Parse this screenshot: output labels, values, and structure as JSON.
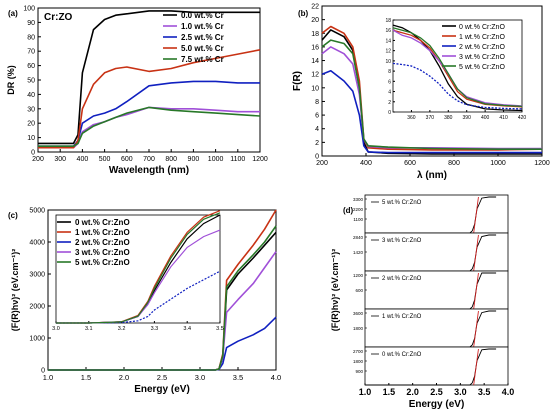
{
  "chart_data": [
    {
      "panel": "(a)",
      "type": "line",
      "inset_title": "Cr:ZO",
      "xlabel": "Wavelength (nm)",
      "ylabel": "DR (%)",
      "xlim": [
        200,
        1200
      ],
      "ylim": [
        0,
        100
      ],
      "xticks": [
        200,
        300,
        400,
        500,
        600,
        700,
        800,
        900,
        1000,
        1100,
        1200
      ],
      "yticks": [
        0,
        10,
        20,
        30,
        40,
        50,
        60,
        70,
        80,
        90,
        100
      ],
      "legend_position": "top-right",
      "series": [
        {
          "name": "0.0 wt.% Cr",
          "color": "#000000",
          "x": [
            200,
            360,
            380,
            400,
            450,
            500,
            550,
            600,
            700,
            800,
            900,
            1000,
            1100,
            1200
          ],
          "y": [
            6,
            6,
            12,
            55,
            85,
            92,
            95,
            96,
            98,
            98,
            97,
            97,
            97,
            97
          ]
        },
        {
          "name": "1.0 wt.% Cr",
          "color": "#a050d8",
          "x": [
            200,
            360,
            380,
            400,
            450,
            500,
            550,
            600,
            700,
            800,
            900,
            1000,
            1100,
            1200
          ],
          "y": [
            3,
            3,
            6,
            14,
            19,
            21,
            24,
            26,
            31,
            30,
            30,
            29,
            28,
            28
          ]
        },
        {
          "name": "2.5 wt.% Cr",
          "color": "#1020c0",
          "x": [
            200,
            360,
            380,
            400,
            450,
            500,
            550,
            600,
            700,
            800,
            900,
            1000,
            1100,
            1200
          ],
          "y": [
            4,
            4,
            8,
            20,
            25,
            27,
            30,
            35,
            46,
            48,
            49,
            49,
            48,
            48
          ]
        },
        {
          "name": "5.0 wt.% Cr",
          "color": "#c83214",
          "x": [
            200,
            360,
            380,
            400,
            450,
            500,
            550,
            600,
            700,
            800,
            900,
            1000,
            1100,
            1200
          ],
          "y": [
            3,
            3,
            8,
            30,
            47,
            55,
            58,
            59,
            56,
            58,
            62,
            65,
            68,
            71
          ]
        },
        {
          "name": "7.5 wt.% Cr",
          "color": "#287828",
          "x": [
            200,
            360,
            380,
            400,
            450,
            500,
            550,
            600,
            700,
            800,
            900,
            1000,
            1100,
            1200
          ],
          "y": [
            4,
            4,
            6,
            13,
            18,
            21,
            24,
            27,
            31,
            29,
            28,
            27,
            26,
            25
          ]
        }
      ]
    },
    {
      "panel": "(b)",
      "type": "line",
      "xlabel": "λ (nm)",
      "ylabel": "F(R)",
      "xlim": [
        200,
        1200
      ],
      "ylim": [
        0,
        22
      ],
      "xticks": [
        200,
        400,
        600,
        800,
        1000,
        1200
      ],
      "yticks": [
        0,
        2,
        4,
        6,
        8,
        10,
        12,
        14,
        16,
        18,
        20,
        22
      ],
      "legend_position": "top-right",
      "series": [
        {
          "name": "0 wt.% Cr:ZnO",
          "color": "#000000",
          "x": [
            200,
            240,
            300,
            340,
            370,
            390,
            410,
            500,
            700,
            1000,
            1200
          ],
          "y": [
            17,
            18.5,
            17.5,
            15.5,
            10,
            2,
            0.6,
            0.4,
            0.3,
            0.3,
            0.3
          ]
        },
        {
          "name": "1 wt.% Cr:ZnO",
          "color": "#c83214",
          "x": [
            200,
            240,
            300,
            340,
            370,
            390,
            410,
            500,
            700,
            1000,
            1200
          ],
          "y": [
            18,
            19,
            18,
            16,
            11,
            2.5,
            1.2,
            1.0,
            0.9,
            0.9,
            1.0
          ]
        },
        {
          "name": "2 wt.% Cr:ZnO",
          "color": "#1020c0",
          "x": [
            200,
            240,
            300,
            340,
            370,
            390,
            410,
            500,
            700,
            1000,
            1200
          ],
          "y": [
            12,
            12.5,
            11,
            9.5,
            6,
            1.5,
            0.6,
            0.5,
            0.5,
            0.5,
            0.5
          ]
        },
        {
          "name": "3 wt.% Cr:ZnO",
          "color": "#a050d8",
          "x": [
            200,
            240,
            300,
            340,
            370,
            390,
            410,
            500,
            700,
            1000,
            1200
          ],
          "y": [
            15,
            16,
            15,
            13.5,
            9,
            2.5,
            1.4,
            1.2,
            1.2,
            1.1,
            1.1
          ]
        },
        {
          "name": "5 wt.% Cr:ZnO",
          "color": "#287828",
          "x": [
            200,
            240,
            300,
            340,
            370,
            390,
            410,
            500,
            700,
            1000,
            1200
          ],
          "y": [
            16,
            17,
            16.5,
            15,
            10,
            2.5,
            1.5,
            1.3,
            1.1,
            1.0,
            1.0
          ]
        }
      ],
      "inset": {
        "xlim": [
          350,
          420
        ],
        "ylim": [
          0,
          18
        ],
        "xticks": [
          360,
          370,
          380,
          390,
          400,
          410,
          420
        ],
        "yticks": [
          0,
          2,
          4,
          6,
          8,
          10,
          12,
          14,
          16,
          18
        ],
        "series": [
          {
            "name": "0 wt.% Cr:ZnO",
            "color": "#000000",
            "x": [
              350,
              355,
              360,
              365,
              370,
              375,
              380,
              385,
              390,
              400,
              410,
              420
            ],
            "y": [
              17,
              16.5,
              15.5,
              14,
              12,
              9,
              5.5,
              3,
              1.5,
              0.6,
              0.4,
              0.3
            ]
          },
          {
            "name": "1 wt.% Cr:ZnO",
            "color": "#c83214",
            "x": [
              350,
              355,
              360,
              365,
              370,
              375,
              380,
              385,
              390,
              400,
              410,
              420
            ],
            "y": [
              16,
              15.5,
              15,
              14,
              12.5,
              10,
              7,
              4,
              2.5,
              1.5,
              1.2,
              1.0
            ]
          },
          {
            "name": "2 wt.% Cr:ZnO",
            "color": "#1020c0",
            "x": [
              350,
              355,
              360,
              365,
              370,
              375,
              380,
              385,
              390,
              400,
              410,
              420
            ],
            "y": [
              9.5,
              9.3,
              9,
              8.2,
              7,
              5.5,
              3.5,
              2.2,
              1.4,
              0.9,
              0.7,
              0.6
            ]
          },
          {
            "name": "3 wt.% Cr:ZnO",
            "color": "#a050d8",
            "x": [
              350,
              355,
              360,
              365,
              370,
              375,
              380,
              385,
              390,
              400,
              410,
              420
            ],
            "y": [
              16,
              15,
              14.5,
              13.5,
              12,
              10,
              7.5,
              4.5,
              3,
              1.8,
              1.4,
              1.2
            ]
          },
          {
            "name": "5 wt.% Cr:ZnO",
            "color": "#287828",
            "x": [
              350,
              355,
              360,
              365,
              370,
              375,
              380,
              385,
              390,
              400,
              410,
              420
            ],
            "y": [
              16.5,
              16,
              15.5,
              14.5,
              13,
              10.5,
              7.5,
              4.5,
              2.8,
              1.6,
              1.3,
              1.1
            ]
          }
        ]
      }
    },
    {
      "panel": "(c)",
      "type": "line",
      "xlabel": "Energy (eV)",
      "ylabel": "(F(R)hν)² (eV.cm⁻¹)²",
      "xlim": [
        1.0,
        4.0
      ],
      "ylim": [
        0,
        5000
      ],
      "xticks": [
        "1.0",
        "1.5",
        "2.0",
        "2.5",
        "3.0",
        "3.5",
        "4.0"
      ],
      "yticks": [
        0,
        1000,
        2000,
        3000,
        4000,
        5000
      ],
      "legend_position": "top-left",
      "series": [
        {
          "name": "0 wt.% Cr:ZnO",
          "color": "#000000",
          "x": [
            1.0,
            3.0,
            3.2,
            3.25,
            3.3,
            3.35,
            3.5,
            3.7,
            3.85,
            4.0
          ],
          "y": [
            0,
            0,
            0,
            30,
            400,
            2500,
            3000,
            3500,
            3900,
            4300
          ]
        },
        {
          "name": "1 wt.% Cr:ZnO",
          "color": "#c83214",
          "x": [
            1.0,
            3.0,
            3.2,
            3.25,
            3.3,
            3.35,
            3.5,
            3.7,
            3.85,
            4.0
          ],
          "y": [
            0,
            0,
            0,
            40,
            500,
            2800,
            3300,
            3900,
            4400,
            5000
          ]
        },
        {
          "name": "2 wt.% Cr:ZnO",
          "color": "#1020c0",
          "x": [
            1.0,
            3.0,
            3.2,
            3.25,
            3.3,
            3.35,
            3.5,
            3.7,
            3.85,
            4.0
          ],
          "y": [
            0,
            0,
            0,
            20,
            200,
            700,
            900,
            1100,
            1300,
            1650
          ]
        },
        {
          "name": "3 wt.% Cr:ZnO",
          "color": "#a050d8",
          "x": [
            1.0,
            3.0,
            3.2,
            3.25,
            3.3,
            3.35,
            3.5,
            3.7,
            3.85,
            4.0
          ],
          "y": [
            0,
            0,
            0,
            30,
            400,
            1800,
            2200,
            2700,
            3200,
            3700
          ]
        },
        {
          "name": "5 wt.% Cr:ZnO",
          "color": "#287828",
          "x": [
            1.0,
            3.0,
            3.2,
            3.25,
            3.3,
            3.35,
            3.5,
            3.7,
            3.85,
            4.0
          ],
          "y": [
            0,
            0,
            0,
            30,
            450,
            2600,
            3100,
            3600,
            4000,
            4500
          ]
        }
      ],
      "inset": {
        "xlim": [
          3.0,
          3.5
        ],
        "ylim": [
          0,
          5000
        ],
        "xticks": [
          "3.0",
          "3.1",
          "3.2",
          "3.3",
          "3.4",
          "3.5"
        ],
        "series": [
          {
            "name": "0 wt.% Cr:ZnO",
            "color": "#000000",
            "x": [
              3.0,
              3.1,
              3.2,
              3.25,
              3.28,
              3.3,
              3.35,
              3.4,
              3.45,
              3.5
            ],
            "y": [
              0,
              0,
              50,
              300,
              900,
              1500,
              2800,
              3900,
              4600,
              5000
            ]
          },
          {
            "name": "1 wt.% Cr:ZnO",
            "color": "#c83214",
            "x": [
              3.0,
              3.1,
              3.2,
              3.25,
              3.28,
              3.3,
              3.35,
              3.4,
              3.45,
              3.5
            ],
            "y": [
              0,
              0,
              60,
              350,
              1000,
              1700,
              3100,
              4200,
              4900,
              5200
            ]
          },
          {
            "name": "2 wt.% Cr:ZnO",
            "color": "#1020c0",
            "x": [
              3.0,
              3.1,
              3.2,
              3.25,
              3.28,
              3.3,
              3.35,
              3.4,
              3.45,
              3.5
            ],
            "y": [
              0,
              0,
              20,
              100,
              300,
              600,
              1100,
              1600,
              2000,
              2400
            ]
          },
          {
            "name": "3 wt.% Cr:ZnO",
            "color": "#a050d8",
            "x": [
              3.0,
              3.1,
              3.2,
              3.25,
              3.28,
              3.3,
              3.35,
              3.4,
              3.45,
              3.5
            ],
            "y": [
              0,
              0,
              50,
              300,
              850,
              1400,
              2600,
              3500,
              4000,
              4300
            ]
          },
          {
            "name": "5 wt.% Cr:ZnO",
            "color": "#287828",
            "x": [
              3.0,
              3.1,
              3.2,
              3.25,
              3.28,
              3.3,
              3.35,
              3.4,
              3.45,
              3.5
            ],
            "y": [
              0,
              0,
              50,
              320,
              950,
              1600,
              3000,
              4100,
              4800,
              5100
            ]
          }
        ]
      }
    },
    {
      "panel": "(d)",
      "type": "line",
      "xlabel": "Energy (eV)",
      "ylabel": "(F(R)hν)² (eV.cm⁻¹)²",
      "xlim": [
        1.0,
        4.0
      ],
      "xticks": [
        "1.0",
        "1.5",
        "2.0",
        "2.5",
        "3.0",
        "3.5",
        "4.0"
      ],
      "stacked_panels": [
        {
          "label": "5 wt.% Cr:ZnO",
          "yticks": [
            "3300",
            "2200",
            "1100"
          ],
          "ymax": 3300,
          "peak": 4000
        },
        {
          "label": "3 wt.% Cr:ZnO",
          "yticks": [
            "2840",
            "1420"
          ],
          "ymax": 2840,
          "peak": 3400
        },
        {
          "label": "2 wt.% Cr:ZnO",
          "yticks": [
            "1200",
            "600"
          ],
          "ymax": 1200,
          "peak": 1500
        },
        {
          "label": "1 wt.% Cr:ZnO",
          "yticks": [
            "3600",
            "1800"
          ],
          "ymax": 3600,
          "peak": 4300
        },
        {
          "label": "0 wt.% Cr:ZnO",
          "yticks": [
            "2700",
            "1800",
            "900"
          ],
          "ymax": 2700,
          "peak": 3300
        }
      ]
    }
  ]
}
